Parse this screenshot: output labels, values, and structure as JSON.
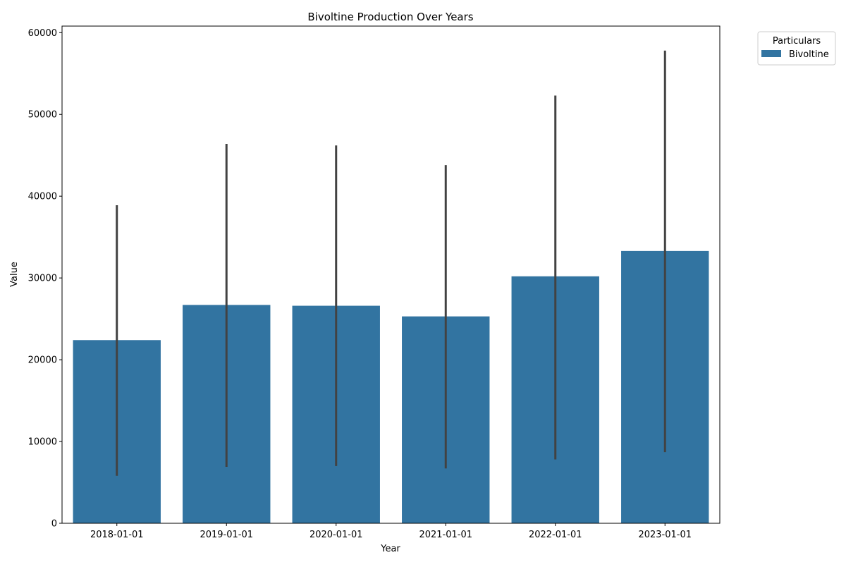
{
  "chart_data": {
    "type": "bar",
    "title": "Bivoltine Production Over Years",
    "xlabel": "Year",
    "ylabel": "Value",
    "categories": [
      "2018-01-01",
      "2019-01-01",
      "2020-01-01",
      "2021-01-01",
      "2022-01-01",
      "2023-01-01"
    ],
    "series": [
      {
        "name": "Bivoltine",
        "color": "#3274a1",
        "values": [
          22400,
          26700,
          26600,
          25300,
          30200,
          33300
        ],
        "error_low": [
          5800,
          6900,
          7000,
          6700,
          7800,
          8700
        ],
        "error_high": [
          38900,
          46400,
          46200,
          43800,
          52300,
          57800
        ]
      }
    ],
    "ylim": [
      0,
      60800
    ],
    "yticks": [
      0,
      10000,
      20000,
      30000,
      40000,
      50000,
      60000
    ],
    "error_bar_color": "#424242",
    "grid": false,
    "legend": {
      "title": "Particulars",
      "placement": "outside-top-right"
    }
  }
}
